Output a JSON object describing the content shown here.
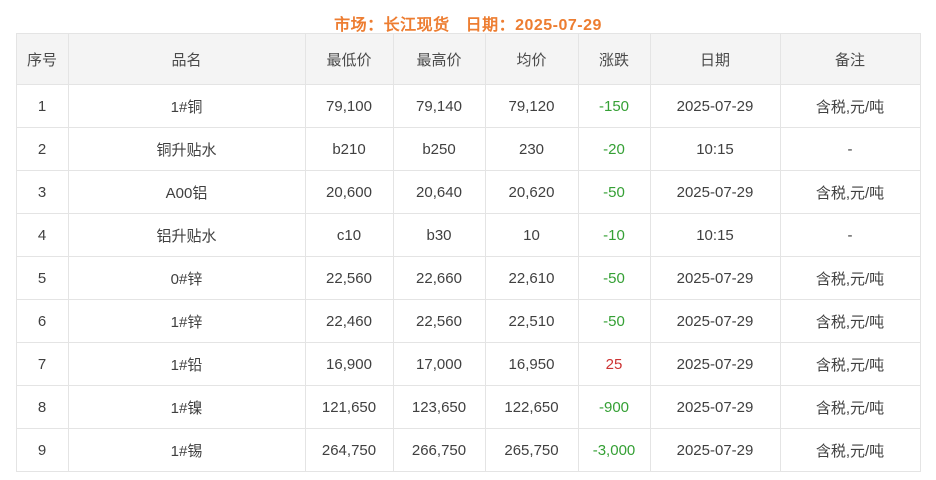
{
  "title": {
    "market": "市场：长江现货",
    "date": "日期：2025-07-29"
  },
  "table": {
    "columns": [
      "序号",
      "品名",
      "最低价",
      "最高价",
      "均价",
      "涨跌",
      "日期",
      "备注"
    ],
    "rows": [
      {
        "no": "1",
        "name": "1#铜",
        "low": "79,100",
        "high": "79,140",
        "avg": "79,120",
        "change": "-150",
        "date": "2025-07-29",
        "note": "含税,元/吨"
      },
      {
        "no": "2",
        "name": "铜升贴水",
        "low": "b210",
        "high": "b250",
        "avg": "230",
        "change": "-20",
        "date": "10:15",
        "note": "-"
      },
      {
        "no": "3",
        "name": "A00铝",
        "low": "20,600",
        "high": "20,640",
        "avg": "20,620",
        "change": "-50",
        "date": "2025-07-29",
        "note": "含税,元/吨"
      },
      {
        "no": "4",
        "name": "铝升贴水",
        "low": "c10",
        "high": "b30",
        "avg": "10",
        "change": "-10",
        "date": "10:15",
        "note": "-"
      },
      {
        "no": "5",
        "name": "0#锌",
        "low": "22,560",
        "high": "22,660",
        "avg": "22,610",
        "change": "-50",
        "date": "2025-07-29",
        "note": "含税,元/吨"
      },
      {
        "no": "6",
        "name": "1#锌",
        "low": "22,460",
        "high": "22,560",
        "avg": "22,510",
        "change": "-50",
        "date": "2025-07-29",
        "note": "含税,元/吨"
      },
      {
        "no": "7",
        "name": "1#铅",
        "low": "16,900",
        "high": "17,000",
        "avg": "16,950",
        "change": "25",
        "date": "2025-07-29",
        "note": "含税,元/吨"
      },
      {
        "no": "8",
        "name": "1#镍",
        "low": "121,650",
        "high": "123,650",
        "avg": "122,650",
        "change": "-900",
        "date": "2025-07-29",
        "note": "含税,元/吨"
      },
      {
        "no": "9",
        "name": "1#锡",
        "low": "264,750",
        "high": "266,750",
        "avg": "265,750",
        "change": "-3,000",
        "date": "2025-07-29",
        "note": "含税,元/吨"
      }
    ]
  },
  "colors": {
    "accent_orange": "#ed7d31",
    "change_down_green": "#35a035",
    "change_up_red": "#cc3333",
    "header_bg": "#f4f4f4",
    "border": "#e4e4e4",
    "text": "#404040"
  }
}
